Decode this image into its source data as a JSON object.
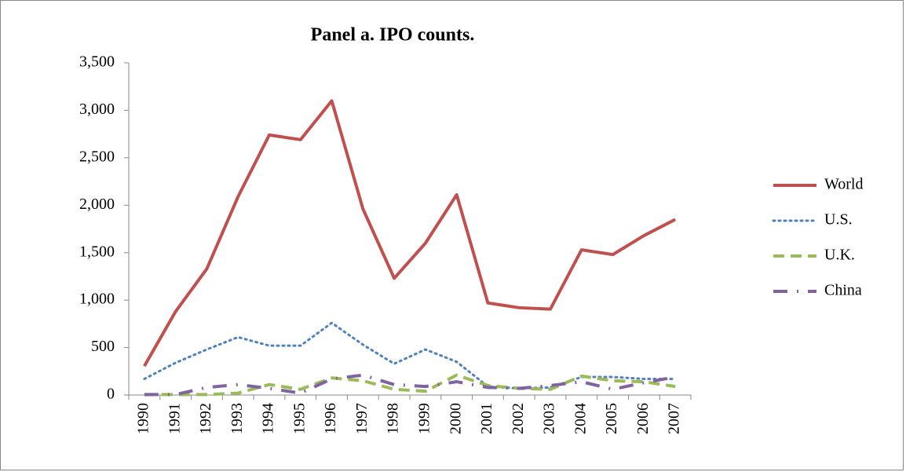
{
  "chart_data": {
    "type": "line",
    "title": "Panel a. IPO counts.",
    "categories": [
      "1990",
      "1991",
      "1992",
      "1993",
      "1994",
      "1995",
      "1996",
      "1997",
      "1998",
      "1999",
      "2000",
      "2001",
      "2002",
      "2003",
      "2004",
      "2005",
      "2006",
      "2007"
    ],
    "series": [
      {
        "name": "World",
        "color": "#c0504d",
        "style": "solid",
        "values": [
          305,
          880,
          1330,
          2090,
          2740,
          2690,
          3100,
          1960,
          1230,
          1600,
          2110,
          970,
          920,
          905,
          1530,
          1480,
          1680,
          1850
        ]
      },
      {
        "name": "U.S.",
        "color": "#4f81bd",
        "style": "dotted",
        "values": [
          170,
          340,
          480,
          610,
          520,
          520,
          760,
          530,
          330,
          480,
          350,
          90,
          70,
          80,
          190,
          190,
          170,
          170
        ]
      },
      {
        "name": "U.K.",
        "color": "#9bbb59",
        "style": "dashed",
        "values": [
          5,
          5,
          5,
          20,
          110,
          60,
          180,
          150,
          60,
          40,
          210,
          100,
          70,
          60,
          200,
          150,
          140,
          90
        ]
      },
      {
        "name": "China",
        "color": "#8064a2",
        "style": "dashdot",
        "values": [
          5,
          5,
          80,
          110,
          70,
          20,
          170,
          210,
          110,
          90,
          140,
          80,
          70,
          100,
          140,
          60,
          130,
          190
        ]
      }
    ],
    "ylim": [
      0,
      3500
    ],
    "yticks": [
      0,
      500,
      {
        "value": 1000,
        "label": "1,000"
      },
      {
        "value": 1500,
        "label": "1,500"
      },
      {
        "value": 2000,
        "label": "2,000"
      },
      {
        "value": 2500,
        "label": "2,500"
      },
      {
        "value": 3000,
        "label": "3,000"
      },
      {
        "value": 3500,
        "label": "3,500"
      }
    ],
    "grid": false,
    "legend": "right"
  }
}
